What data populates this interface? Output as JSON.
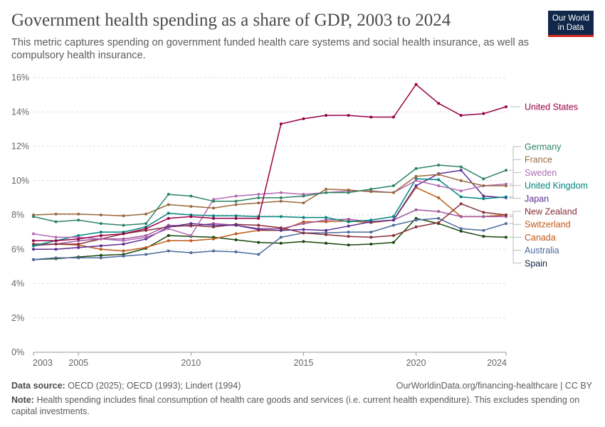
{
  "header": {
    "title": "Government health spending as a share of GDP, 2003 to 2024",
    "subtitle": "This metric captures spending on government funded health care systems and social health insurance, as well as compulsory health insurance."
  },
  "logo": {
    "line1": "Our World",
    "line2": "in Data"
  },
  "footer": {
    "source_label": "Data source:",
    "source_text": "OECD (2025); OECD (1993); Lindert (1994)",
    "url_text": "OurWorldinData.org/financing-healthcare | CC BY",
    "note_label": "Note:",
    "note_text": "Health spending includes final consumption of health care goods and services (i.e. current health expenditure). This excludes spending on capital investments."
  },
  "colors": {
    "grid": "#dddddd",
    "axis_text": "#666666",
    "label_connector": "#bbbbbb",
    "logo_bg": "#11284a",
    "logo_accent": "#ce261e"
  },
  "chart_data": {
    "type": "line",
    "title": "Government health spending as a share of GDP, 2003 to 2024",
    "xlabel": "",
    "ylabel": "",
    "xlim": [
      2003,
      2024
    ],
    "ylim": [
      0,
      16
    ],
    "grid": true,
    "legend": "inline labels at right",
    "x_ticks": [
      2003,
      2005,
      2010,
      2015,
      2020,
      2024
    ],
    "y_ticks": [
      0,
      2,
      4,
      6,
      8,
      10,
      12,
      14,
      16
    ],
    "y_tick_labels": [
      "0%",
      "2%",
      "4%",
      "6%",
      "8%",
      "10%",
      "12%",
      "14%",
      "16%"
    ],
    "x": [
      2003,
      2004,
      2005,
      2006,
      2007,
      2008,
      2009,
      2010,
      2011,
      2012,
      2013,
      2014,
      2015,
      2016,
      2017,
      2018,
      2019,
      2020,
      2021,
      2022,
      2023,
      2024
    ],
    "series": [
      {
        "name": "United States",
        "color": "#970046",
        "values": [
          6.5,
          6.5,
          6.6,
          6.8,
          6.9,
          7.2,
          7.8,
          7.9,
          7.8,
          7.8,
          7.8,
          13.3,
          13.6,
          13.8,
          13.8,
          13.7,
          13.7,
          15.6,
          14.5,
          13.8,
          13.9,
          14.3
        ]
      },
      {
        "name": "Germany",
        "color": "#2c8465",
        "values": [
          7.9,
          7.6,
          7.7,
          7.5,
          7.4,
          7.5,
          9.2,
          9.1,
          8.8,
          8.8,
          9.0,
          9.0,
          9.1,
          9.3,
          9.3,
          9.5,
          9.7,
          10.7,
          10.9,
          10.8,
          10.1,
          10.6
        ]
      },
      {
        "name": "France",
        "color": "#9a6a3d",
        "values": [
          8.0,
          8.05,
          8.05,
          8.0,
          7.95,
          8.05,
          8.6,
          8.5,
          8.4,
          8.6,
          8.7,
          8.8,
          8.7,
          9.5,
          9.45,
          9.35,
          9.3,
          10.25,
          10.35,
          10.0,
          9.7,
          9.7
        ]
      },
      {
        "name": "Sweden",
        "color": "#b16cb5",
        "values": [
          6.9,
          6.7,
          6.7,
          6.6,
          6.5,
          6.7,
          7.2,
          6.8,
          8.9,
          9.1,
          9.2,
          9.3,
          9.2,
          9.3,
          9.4,
          9.4,
          9.3,
          10.0,
          9.7,
          9.4,
          9.7,
          9.8
        ]
      },
      {
        "name": "United Kingdom",
        "color": "#00847e",
        "values": [
          6.2,
          6.5,
          6.8,
          7.0,
          7.0,
          7.3,
          8.1,
          8.0,
          7.95,
          7.95,
          7.9,
          7.9,
          7.85,
          7.85,
          7.6,
          7.7,
          7.9,
          10.1,
          10.05,
          9.05,
          8.95,
          9.05
        ]
      },
      {
        "name": "Japan",
        "color": "#5b2c8f",
        "values": [
          6.0,
          6.0,
          6.1,
          6.2,
          6.3,
          6.6,
          7.3,
          7.5,
          7.4,
          7.4,
          7.15,
          7.1,
          7.15,
          7.1,
          7.35,
          7.6,
          7.7,
          9.7,
          10.4,
          10.6,
          9.1,
          9.0
        ]
      },
      {
        "name": "New Zealand",
        "color": "#883039",
        "values": [
          6.3,
          6.3,
          6.3,
          6.6,
          6.9,
          7.1,
          7.3,
          7.4,
          7.3,
          7.45,
          7.4,
          7.25,
          6.95,
          6.85,
          6.75,
          6.7,
          6.8,
          7.3,
          7.55,
          8.65,
          8.15,
          8.0
        ]
      },
      {
        "name": "Switzerland",
        "color": "#a2559c",
        "values": [
          6.2,
          6.3,
          6.5,
          6.6,
          6.6,
          6.8,
          7.4,
          7.35,
          7.5,
          7.4,
          7.2,
          7.2,
          7.5,
          7.7,
          7.75,
          7.6,
          7.7,
          8.3,
          8.2,
          7.9,
          7.9,
          7.9
        ]
      },
      {
        "name": "Canada",
        "color": "#c05917",
        "values": [
          6.25,
          6.3,
          6.25,
          6.0,
          5.9,
          6.1,
          6.5,
          6.5,
          6.6,
          6.9,
          7.1,
          7.1,
          7.6,
          7.6,
          7.65,
          7.55,
          7.7,
          9.6,
          9.0,
          7.9,
          7.9,
          8.0
        ]
      },
      {
        "name": "Australia",
        "color": "#4c6a9c",
        "values": [
          5.4,
          5.5,
          5.5,
          5.5,
          5.6,
          5.7,
          5.9,
          5.8,
          5.9,
          5.85,
          5.7,
          6.7,
          6.95,
          6.95,
          7.0,
          7.0,
          7.4,
          7.7,
          7.8,
          7.2,
          7.1,
          7.5
        ]
      },
      {
        "name": "Spain",
        "color": "#18470f",
        "values": [
          5.4,
          5.45,
          5.55,
          5.65,
          5.7,
          6.05,
          6.8,
          6.75,
          6.7,
          6.55,
          6.4,
          6.35,
          6.45,
          6.35,
          6.25,
          6.3,
          6.4,
          7.8,
          7.5,
          7.05,
          6.75,
          6.7
        ]
      }
    ],
    "label_order": [
      "Germany",
      "France",
      "Sweden",
      "United Kingdom",
      "Japan",
      "New Zealand",
      "Switzerland",
      "Canada",
      "Australia",
      "Spain"
    ],
    "label_colors": {
      "Spain": "#11284a",
      "Australia": "#4c6a9c",
      "Canada": "#c05917",
      "Switzerland": "#c05917",
      "New Zealand": "#883039",
      "Japan": "#5b2c8f",
      "United Kingdom": "#00847e",
      "Sweden": "#b16cb5",
      "France": "#9a6a3d",
      "Germany": "#2c8465",
      "United States": "#970046"
    }
  }
}
